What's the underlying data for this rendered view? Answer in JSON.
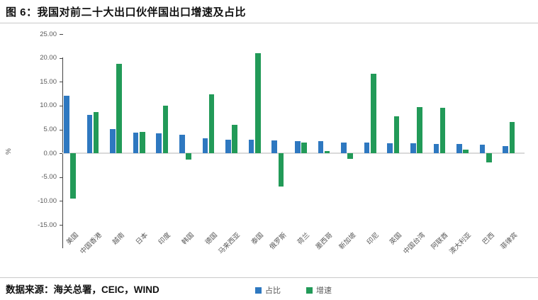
{
  "title": "图 6：我国对前二十大出口伙伴国出口增速及占比",
  "footer": {
    "source": "数据来源：海关总署，CEIC，WIND"
  },
  "colors": {
    "share_blue": "#2E78C0",
    "growth_green": "#229A58",
    "axis": "#444444",
    "tick_label": "#595959",
    "zero_line": "#DADADA"
  },
  "chart_data": {
    "type": "bar",
    "title": "图 6：我国对前二十大出口伙伴国出口增速及占比",
    "xlabel": "",
    "ylabel": "%",
    "ylim": [
      -15,
      25
    ],
    "ytick_step": 5,
    "ytick_labels": [
      "25.00",
      "20.00",
      "15.00",
      "10.00",
      "5.00",
      "0.00",
      "-5.00",
      "-10.00",
      "-15.00"
    ],
    "grid": "zero-line-only",
    "legend_position": "bottom-center",
    "categories": [
      "美国",
      "中国香港",
      "越南",
      "日本",
      "印度",
      "韩国",
      "德国",
      "马来西亚",
      "泰国",
      "俄罗斯",
      "荷兰",
      "墨西哥",
      "新加坡",
      "印尼",
      "英国",
      "中国台湾",
      "阿联酋",
      "澳大利亚",
      "巴西",
      "菲律宾"
    ],
    "series": [
      {
        "name": "占比",
        "key": "share",
        "color": "#2E78C0",
        "values": [
          12.0,
          8.0,
          5.1,
          4.4,
          4.2,
          3.9,
          3.2,
          2.9,
          2.9,
          2.7,
          2.5,
          2.5,
          2.2,
          2.3,
          2.1,
          2.1,
          1.9,
          1.9,
          1.8,
          1.5
        ]
      },
      {
        "name": "增速",
        "key": "growth",
        "color": "#229A58",
        "values": [
          -9.5,
          8.7,
          18.8,
          4.5,
          10.0,
          -1.3,
          12.3,
          6.0,
          21.0,
          -7.0,
          2.2,
          0.4,
          -1.2,
          16.6,
          7.7,
          9.7,
          9.5,
          0.8,
          -1.9,
          6.5
        ]
      }
    ]
  }
}
